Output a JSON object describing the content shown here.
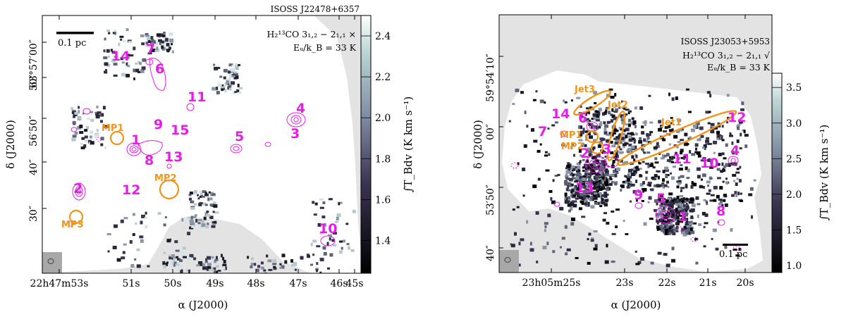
{
  "chart_data": [
    {
      "type": "heatmap",
      "panel": "left",
      "title": "ISOSS J22478+6357",
      "line_label": "H$_2^{13}$CO 3$_{1,2}$ − 2$_{1,1}$ ×",
      "energy_label": "E$_u$/k$_B$ = 33 K",
      "xlabel": "α (J2000)",
      "ylabel": "δ (J2000)",
      "colorbar_label": "∫T$_B$dv (K km s$^{-1}$)",
      "colorbar_ticks": [
        "1.4",
        "1.6",
        "1.8",
        "2.0",
        "2.2",
        "2.4"
      ],
      "colorbar_range": [
        1.24,
        2.5
      ],
      "x_ticks": [
        "22h47m53s",
        "51s",
        "50s",
        "49s",
        "48s",
        "47s",
        "46s",
        "45s"
      ],
      "y_ticks": [
        "63°57′00″",
        "50″",
        "56′50″",
        "40″",
        "30″"
      ],
      "scalebar": "0.1 pc",
      "cores": [
        "1",
        "2",
        "3",
        "4",
        "5",
        "6",
        "7",
        "8",
        "9",
        "10",
        "11",
        "12",
        "13",
        "14",
        "15"
      ],
      "markers": [
        "MP1",
        "MP2",
        "MP3"
      ]
    },
    {
      "type": "heatmap",
      "panel": "right",
      "title": "ISOSS J23053+5953",
      "line_label": "H$_2^{13}$CO 3$_{1,2}$ − 2$_{1,1}$ √",
      "energy_label": "E$_u$/k$_B$ = 33 K",
      "xlabel": "α (J2000)",
      "ylabel": "δ (J2000)",
      "colorbar_label": "∫T$_B$dv (K km s$^{-1}$)",
      "colorbar_ticks": [
        "1.0",
        "1.5",
        "2.0",
        "2.5",
        "3.0",
        "3.5"
      ],
      "colorbar_range": [
        0.9,
        3.7
      ],
      "x_ticks": [
        "23h05m25s",
        "23s",
        "22s",
        "21s",
        "20s"
      ],
      "y_ticks": [
        "59°54′10″",
        "00″",
        "53′50″",
        "40″"
      ],
      "scalebar": "0.1 pc",
      "cores": [
        "1",
        "2",
        "3",
        "4",
        "5",
        "6",
        "7",
        "8",
        "9",
        "10",
        "11",
        "12",
        "13",
        "14"
      ],
      "markers": [
        "MP1",
        "MP2"
      ],
      "jets": [
        "Jet1",
        "Jet2",
        "Jet3"
      ]
    }
  ],
  "text": {
    "left_title": "ISOSS J22478+6357",
    "left_line": "H₂¹³CO 3₁,₂ − 2₁,₁ ×",
    "left_energy": "Eᵤ/k_B = 33 K",
    "right_title": "ISOSS J23053+5953",
    "right_line": "H₂¹³CO 3₁,₂ − 2₁,₁ √",
    "right_energy": "Eᵤ/k_B = 33 K",
    "xlabel": "α (J2000)",
    "ylabel": "δ (J2000)",
    "cbar": "∫T_Bdv (K km s⁻¹)",
    "scalebar": "0.1 pc"
  }
}
